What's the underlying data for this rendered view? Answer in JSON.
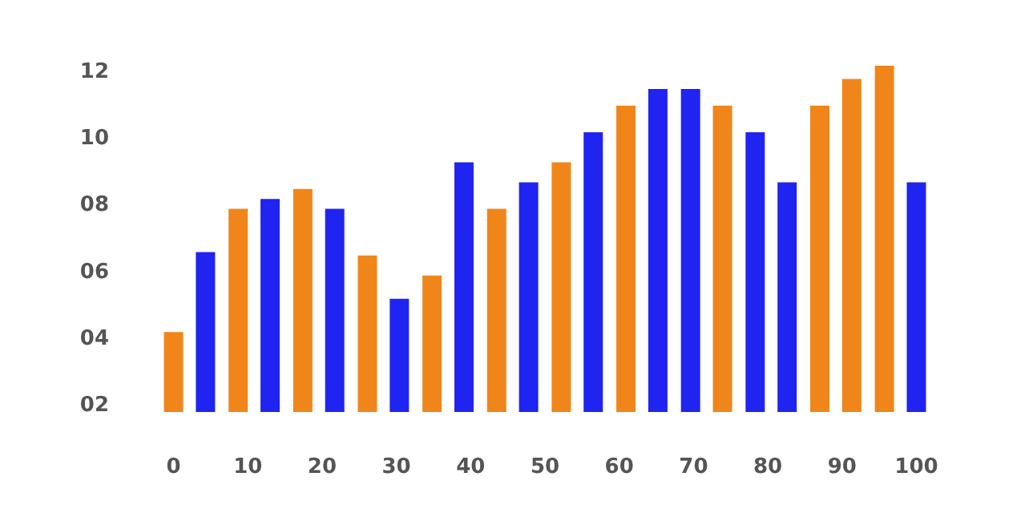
{
  "chart_data": {
    "type": "bar",
    "x": [
      0,
      4.3,
      8.7,
      13.0,
      17.4,
      21.7,
      26.1,
      30.4,
      34.8,
      39.1,
      43.5,
      47.8,
      52.2,
      56.5,
      60.9,
      65.2,
      69.6,
      73.9,
      78.3,
      82.6,
      87.0,
      91.3,
      95.7,
      100
    ],
    "values": [
      4.2,
      6.6,
      7.9,
      8.2,
      8.5,
      7.9,
      6.5,
      5.2,
      5.9,
      9.3,
      7.9,
      8.7,
      9.3,
      10.2,
      11.0,
      11.5,
      11.5,
      11.0,
      10.2,
      8.7,
      11.0,
      11.8,
      12.2,
      8.7
    ],
    "colors": [
      "#f0861a",
      "#1f24f0",
      "#f0861a",
      "#1f24f0",
      "#f0861a",
      "#1f24f0",
      "#f0861a",
      "#1f24f0",
      "#f0861a",
      "#1f24f0",
      "#f0861a",
      "#1f24f0",
      "#f0861a",
      "#1f24f0",
      "#f0861a",
      "#1f24f0",
      "#1f24f0",
      "#f0861a",
      "#1f24f0",
      "#1f24f0",
      "#f0861a",
      "#f0861a",
      "#f0861a",
      "#1f24f0"
    ],
    "xlim": [
      -2,
      102
    ],
    "xticks": [
      0,
      10,
      20,
      30,
      40,
      50,
      60,
      70,
      80,
      90,
      100
    ],
    "ylim": [
      1.8,
      12.2
    ],
    "yticks": [
      {
        "value": 2,
        "label": "02"
      },
      {
        "value": 4,
        "label": "04"
      },
      {
        "value": 6,
        "label": "06"
      },
      {
        "value": 8,
        "label": "08"
      },
      {
        "value": 10,
        "label": "10"
      },
      {
        "value": 12,
        "label": "12"
      }
    ],
    "grid": false
  }
}
